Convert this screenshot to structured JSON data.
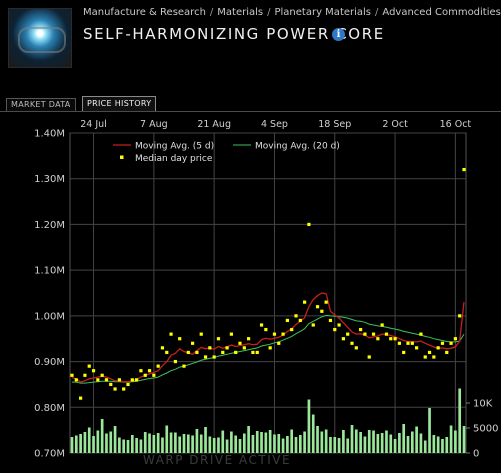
{
  "header": {
    "breadcrumb": [
      "Manufacture & Research",
      "Materials",
      "Planetary Materials",
      "Advanced Commodities"
    ],
    "breadcrumb_separator": "/",
    "title": "SELF-HARMONIZING POWER CORE",
    "info_icon": "info-icon",
    "info_glyph": "i"
  },
  "tabs": [
    {
      "label": "MARKET DATA",
      "active": false
    },
    {
      "label": "PRICE HISTORY",
      "active": true
    }
  ],
  "status_text": "WARP DRIVE ACTIVE",
  "chart_data": {
    "type": "line",
    "x_tick_labels": [
      "24 Jul",
      "7 Aug",
      "21 Aug",
      "4 Sep",
      "18 Sep",
      "2 Oct",
      "16 Oct"
    ],
    "y_tick_labels": [
      "1.40M",
      "1.30M",
      "1.20M",
      "1.10M",
      "1.00M",
      "0.90M",
      "0.80M",
      "0.70M"
    ],
    "ylim": [
      0.7,
      1.4
    ],
    "volume_tick_labels": [
      "10K",
      "5000",
      "0"
    ],
    "volume_ylim": [
      0,
      12000
    ],
    "legend": [
      "Moving Avg. (5 d)",
      "Moving Avg. (20 d)",
      "Median day price"
    ],
    "colors": {
      "ma5": "#c81e1e",
      "ma20": "#3fc25a",
      "median": "#ffff00",
      "volume": "#9be89b",
      "grid": "#444444"
    },
    "grid": true,
    "legend_position": "top-left",
    "days": 92,
    "median_prices": [
      0.87,
      0.86,
      0.82,
      0.87,
      0.89,
      0.88,
      0.86,
      0.87,
      0.86,
      0.85,
      0.84,
      0.86,
      0.84,
      0.85,
      0.86,
      0.86,
      0.88,
      0.87,
      0.88,
      0.87,
      0.89,
      0.93,
      0.92,
      0.96,
      0.9,
      0.95,
      0.89,
      0.92,
      0.94,
      0.92,
      0.96,
      0.91,
      0.93,
      0.91,
      0.95,
      0.92,
      0.93,
      0.96,
      0.92,
      0.94,
      0.93,
      0.95,
      0.92,
      0.92,
      0.98,
      0.97,
      0.93,
      0.96,
      0.94,
      0.96,
      0.99,
      0.97,
      1.0,
      0.99,
      1.03,
      1.2,
      0.98,
      1.02,
      1.01,
      1.03,
      0.99,
      0.97,
      0.98,
      0.95,
      0.96,
      0.94,
      0.93,
      0.97,
      0.96,
      0.91,
      0.96,
      0.95,
      0.98,
      0.96,
      0.95,
      0.95,
      0.94,
      0.92,
      0.94,
      0.94,
      0.93,
      0.96,
      0.91,
      0.92,
      0.91,
      0.93,
      0.94,
      0.92,
      0.94,
      0.95,
      1.0,
      1.32
    ],
    "ma5": [
      0.865,
      0.862,
      0.855,
      0.858,
      0.862,
      0.864,
      0.866,
      0.868,
      0.866,
      0.862,
      0.858,
      0.857,
      0.856,
      0.856,
      0.858,
      0.861,
      0.866,
      0.87,
      0.873,
      0.876,
      0.88,
      0.891,
      0.9,
      0.914,
      0.918,
      0.928,
      0.922,
      0.919,
      0.916,
      0.924,
      0.931,
      0.928,
      0.93,
      0.927,
      0.933,
      0.929,
      0.932,
      0.936,
      0.933,
      0.935,
      0.937,
      0.939,
      0.937,
      0.938,
      0.948,
      0.951,
      0.949,
      0.951,
      0.953,
      0.958,
      0.966,
      0.972,
      0.981,
      0.988,
      0.996,
      1.02,
      1.036,
      1.044,
      1.05,
      1.048,
      1.01,
      1.002,
      0.995,
      0.985,
      0.975,
      0.965,
      0.96,
      0.961,
      0.958,
      0.952,
      0.954,
      0.956,
      0.96,
      0.959,
      0.957,
      0.954,
      0.95,
      0.946,
      0.944,
      0.944,
      0.943,
      0.945,
      0.94,
      0.936,
      0.932,
      0.929,
      0.93,
      0.928,
      0.929,
      0.932,
      0.945,
      1.03
    ],
    "ma20": [
      0.855,
      0.855,
      0.853,
      0.853,
      0.854,
      0.855,
      0.856,
      0.857,
      0.857,
      0.857,
      0.856,
      0.856,
      0.855,
      0.855,
      0.856,
      0.857,
      0.859,
      0.861,
      0.863,
      0.864,
      0.866,
      0.871,
      0.875,
      0.88,
      0.883,
      0.888,
      0.89,
      0.893,
      0.896,
      0.899,
      0.903,
      0.905,
      0.907,
      0.909,
      0.912,
      0.914,
      0.916,
      0.918,
      0.92,
      0.922,
      0.924,
      0.926,
      0.928,
      0.93,
      0.934,
      0.936,
      0.938,
      0.941,
      0.943,
      0.947,
      0.951,
      0.955,
      0.961,
      0.966,
      0.972,
      0.983,
      0.988,
      0.993,
      0.998,
      1.001,
      1.0,
      0.999,
      0.998,
      0.997,
      0.995,
      0.992,
      0.989,
      0.988,
      0.986,
      0.982,
      0.98,
      0.978,
      0.977,
      0.975,
      0.973,
      0.971,
      0.969,
      0.966,
      0.964,
      0.962,
      0.96,
      0.958,
      0.955,
      0.953,
      0.95,
      0.948,
      0.946,
      0.944,
      0.943,
      0.943,
      0.945,
      0.96
    ],
    "volumes": [
      3200,
      3500,
      3800,
      4200,
      5100,
      3400,
      4500,
      6800,
      3900,
      4300,
      5400,
      3100,
      2700,
      2600,
      3600,
      3000,
      2700,
      4200,
      3900,
      3600,
      4000,
      3100,
      5500,
      4100,
      4100,
      3300,
      3800,
      3700,
      3500,
      4800,
      3700,
      5200,
      3300,
      3000,
      3100,
      4500,
      2700,
      4300,
      3500,
      2800,
      3900,
      5400,
      3600,
      4400,
      4200,
      4100,
      4600,
      3700,
      3800,
      2900,
      3400,
      4700,
      3200,
      3600,
      4300,
      10700,
      7700,
      5400,
      4300,
      4700,
      3200,
      3200,
      3000,
      4600,
      2900,
      5600,
      4700,
      4200,
      3300,
      4600,
      4500,
      3800,
      4000,
      4500,
      3700,
      2800,
      4000,
      5800,
      3400,
      4300,
      5300,
      3900,
      2500,
      9000,
      3600,
      3300,
      2800,
      3200,
      5500,
      4500,
      12900,
      5400
    ]
  }
}
